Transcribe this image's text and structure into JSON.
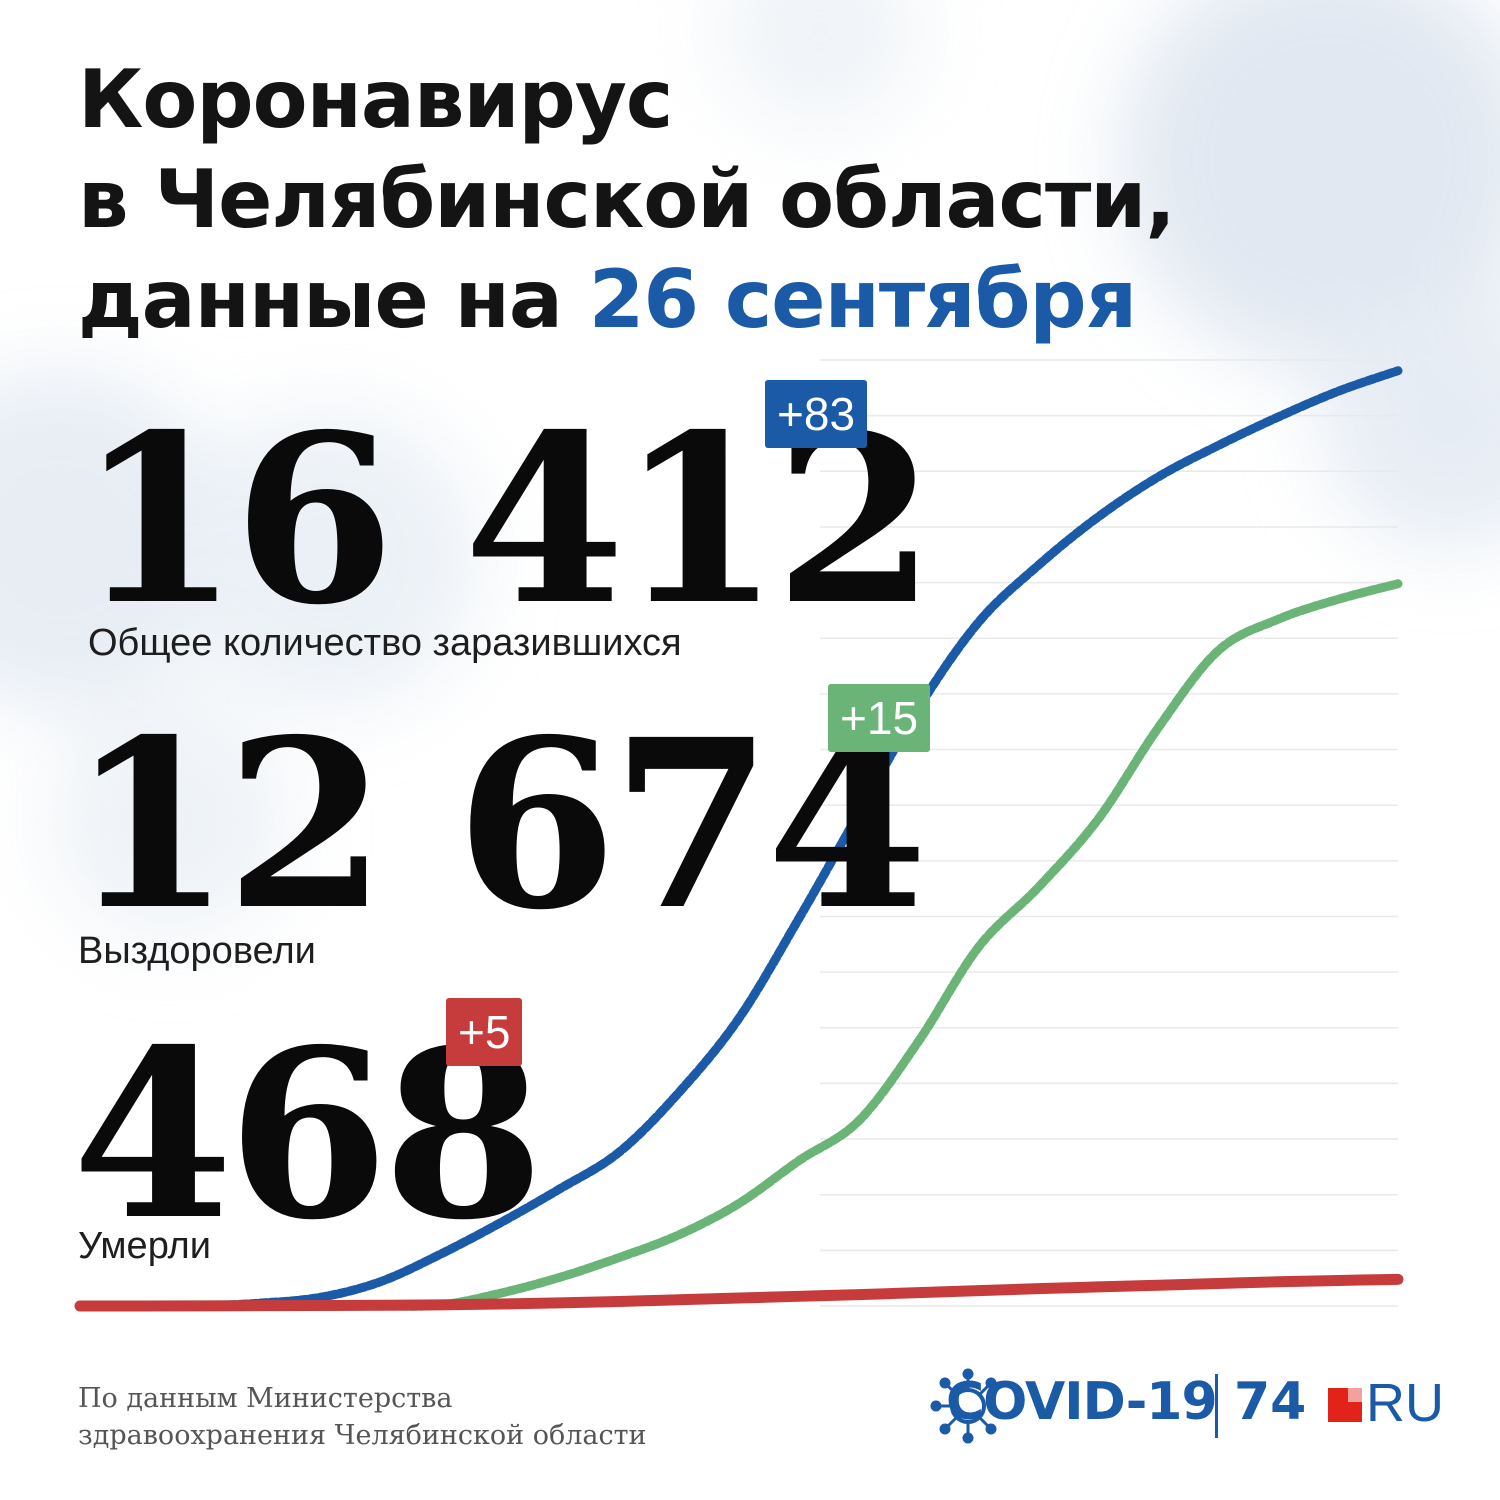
{
  "title": {
    "line1": "Коронавирус",
    "line2": "в Челябинской области,",
    "line3_prefix": "данные на ",
    "line3_date": "26 сентября"
  },
  "stats": {
    "infected": {
      "value": "16 412",
      "delta": "+83",
      "label": "Общее количество заразившихся"
    },
    "recovered": {
      "value": "12 674",
      "delta": "+15",
      "label": "Выздоровели"
    },
    "deaths": {
      "value": "468",
      "delta": "+5",
      "label": "Умерли"
    }
  },
  "colors": {
    "infected": "#1a5aa6",
    "recovered": "#6ab477",
    "deaths": "#c63c3c",
    "title_accent": "#1a5aa6",
    "grid": "#e9e9e9"
  },
  "footer": {
    "line1": "По данным Министерства",
    "line2": "здравоохранения Челябинской области"
  },
  "brand": {
    "covid": "COVID-19",
    "number": "74",
    "ru": "RU"
  },
  "chart_data": {
    "type": "line",
    "xlabel": "",
    "ylabel": "",
    "ylim": [
      0,
      16600
    ],
    "grid": true,
    "legend": "none",
    "x": [
      0,
      10,
      20,
      30,
      40,
      50,
      60,
      70,
      80,
      90,
      100,
      110,
      120,
      130,
      140,
      150,
      160,
      170,
      180,
      190,
      200,
      210,
      220
    ],
    "series": [
      {
        "color": "#1a5aa6",
        "values": [
          0,
          0,
          0,
          50,
          150,
          420,
          900,
          1450,
          2050,
          2700,
          3750,
          5050,
          6800,
          8650,
          10500,
          12000,
          13000,
          13850,
          14550,
          15100,
          15600,
          16050,
          16412
        ]
      },
      {
        "color": "#6ab477",
        "values": [
          0,
          0,
          0,
          0,
          0,
          0,
          15,
          220,
          500,
          850,
          1250,
          1800,
          2550,
          3250,
          4650,
          6300,
          7350,
          8550,
          10150,
          11500,
          12050,
          12400,
          12674
        ]
      },
      {
        "color": "#c63c3c",
        "values": [
          0,
          1,
          3,
          6,
          9,
          13,
          20,
          35,
          55,
          80,
          110,
          140,
          170,
          200,
          235,
          270,
          305,
          335,
          365,
          395,
          425,
          448,
          468
        ]
      }
    ]
  }
}
